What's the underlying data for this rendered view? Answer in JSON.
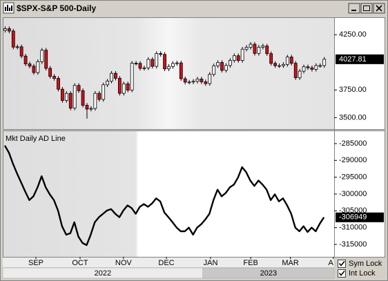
{
  "window": {
    "title": "$SPX-S&P 500-Daily"
  },
  "chart_data": [
    {
      "type": "candlestick",
      "open": [
        4290,
        4305,
        4283,
        4138,
        4141,
        4057,
        3986,
        3966,
        3908,
        4006,
        4110,
        3946,
        3873,
        3855,
        3757,
        3655,
        3719,
        3586,
        3791,
        3744,
        3612,
        3577,
        3583,
        3720,
        3665,
        3797,
        3830,
        3901,
        3856,
        3720,
        3806,
        3749,
        3992,
        3991,
        3946,
        3950,
        4027,
        3964,
        4080,
        4072,
        3941,
        3963,
        3990,
        3995,
        3852,
        3821,
        3822,
        3829,
        3849,
        3824,
        3808,
        3892,
        3969,
        3999,
        3928,
        3972,
        4017,
        4060,
        4017,
        4119,
        4136,
        4164,
        4081,
        4137,
        4148,
        4079,
        3991,
        3970,
        3970,
        3981,
        4048,
        3992,
        3861,
        3920,
        3960,
        3951,
        3937,
        3971,
        3971
      ],
      "high": [
        4325,
        4325,
        4303,
        4161,
        4161,
        4077,
        4006,
        3986,
        4026,
        4130,
        4130,
        3966,
        3893,
        3875,
        3777,
        3739,
        3739,
        3811,
        3811,
        3764,
        3632,
        3603,
        3740,
        3740,
        3817,
        3850,
        3921,
        3921,
        3876,
        3826,
        3826,
        4012,
        4012,
        4011,
        3970,
        4047,
        4047,
        4100,
        4100,
        4092,
        3983,
        4010,
        4015,
        4015,
        3872,
        3842,
        3849,
        3869,
        3869,
        3844,
        3912,
        3989,
        4019,
        4019,
        3992,
        4037,
        4080,
        4080,
        4139,
        4156,
        4184,
        4184,
        4157,
        4168,
        4168,
        4099,
        4011,
        3990,
        4001,
        4068,
        4068,
        4012,
        3940,
        3980,
        3980,
        3971,
        3991,
        3991,
        4048
      ],
      "low": [
        4270,
        4263,
        4118,
        4118,
        4037,
        3966,
        3946,
        3888,
        3888,
        3986,
        3926,
        3853,
        3835,
        3737,
        3635,
        3635,
        3566,
        3566,
        3724,
        3592,
        3491,
        3557,
        3563,
        3645,
        3645,
        3777,
        3810,
        3836,
        3700,
        3700,
        3729,
        3729,
        3971,
        3926,
        3926,
        3930,
        3944,
        3944,
        4052,
        3921,
        3921,
        3943,
        3970,
        3832,
        3801,
        3801,
        3802,
        3809,
        3804,
        3788,
        3788,
        3872,
        3949,
        3908,
        3908,
        3952,
        3997,
        3997,
        3997,
        4099,
        4116,
        4061,
        4061,
        4117,
        4059,
        3971,
        3950,
        3950,
        3950,
        3961,
        3972,
        3841,
        3841,
        3900,
        3931,
        3917,
        3917,
        3951,
        3951
      ],
      "close": [
        4305,
        4283,
        4138,
        4141,
        4057,
        3986,
        3966,
        3908,
        4006,
        4110,
        3946,
        3873,
        3855,
        3757,
        3655,
        3719,
        3586,
        3791,
        3744,
        3612,
        3577,
        3583,
        3720,
        3665,
        3797,
        3830,
        3901,
        3856,
        3720,
        3806,
        3749,
        3992,
        3991,
        3946,
        3950,
        4027,
        3964,
        4080,
        4072,
        3941,
        3963,
        3990,
        3995,
        3852,
        3821,
        3822,
        3829,
        3849,
        3824,
        3808,
        3892,
        3969,
        3999,
        3928,
        3972,
        4017,
        4060,
        4017,
        4119,
        4136,
        4164,
        4081,
        4137,
        4148,
        4079,
        3991,
        3970,
        3970,
        3981,
        4048,
        3992,
        3861,
        3920,
        3960,
        3951,
        3937,
        3971,
        3971,
        4027.81
      ],
      "up_color": "#ffffff",
      "down_color": "#d0101a",
      "xlim": [
        -0.5,
        80.5
      ],
      "ylim": [
        3396,
        4408
      ],
      "yticks": [
        {
          "value": 3500,
          "label": "3500.00"
        },
        {
          "value": 3750,
          "label": "3750.00"
        },
        {
          "value": 4250,
          "label": "4250.00"
        }
      ]
    },
    {
      "type": "line",
      "series": [
        {
          "name": "Mkt Daily AD Line",
          "color": "#000000",
          "values": [
            -285600,
            -287700,
            -291000,
            -293900,
            -296600,
            -299300,
            -301800,
            -300700,
            -298000,
            -294700,
            -298000,
            -300100,
            -301800,
            -304900,
            -309600,
            -312100,
            -311700,
            -308400,
            -312700,
            -314600,
            -315200,
            -312100,
            -308400,
            -306900,
            -305900,
            -304900,
            -304500,
            -305900,
            -306900,
            -304900,
            -303400,
            -304200,
            -305900,
            -303800,
            -303000,
            -303800,
            -302800,
            -301300,
            -302200,
            -305500,
            -306900,
            -308400,
            -310000,
            -311100,
            -311100,
            -310000,
            -312100,
            -310000,
            -309000,
            -307600,
            -305900,
            -301800,
            -298700,
            -300700,
            -299700,
            -298000,
            -297200,
            -295100,
            -292000,
            -293500,
            -296000,
            -297600,
            -296000,
            -297200,
            -298700,
            -301800,
            -300100,
            -302200,
            -301300,
            -303400,
            -305900,
            -310000,
            -311100,
            -309600,
            -311300,
            -310000,
            -311100,
            -308800,
            -306949
          ]
        }
      ],
      "xlim": [
        -0.5,
        80.5
      ],
      "ylim": [
        -318700,
        -281300
      ],
      "yticks": [
        -285000,
        -290000,
        -295000,
        -300000,
        -305000,
        -310000,
        -315000
      ],
      "xticks": [
        {
          "value": 7.6,
          "label": "SEP"
        },
        {
          "value": 18.4,
          "label": "OCT"
        },
        {
          "value": 29,
          "label": "NOV"
        },
        {
          "value": 39.5,
          "label": "DEC"
        },
        {
          "value": 50.3,
          "label": "JAN"
        },
        {
          "value": 60.1,
          "label": "FEB"
        },
        {
          "value": 69.8,
          "label": "MAR"
        },
        {
          "value": 80.3,
          "label": "A"
        }
      ],
      "year_ticks": [
        {
          "value": -0.5,
          "label": "2022"
        },
        {
          "value": 48.4,
          "label": "2023"
        }
      ]
    }
  ],
  "controls": {
    "sym_lock": "Sym Lock",
    "int_lock": "Int Lock"
  }
}
